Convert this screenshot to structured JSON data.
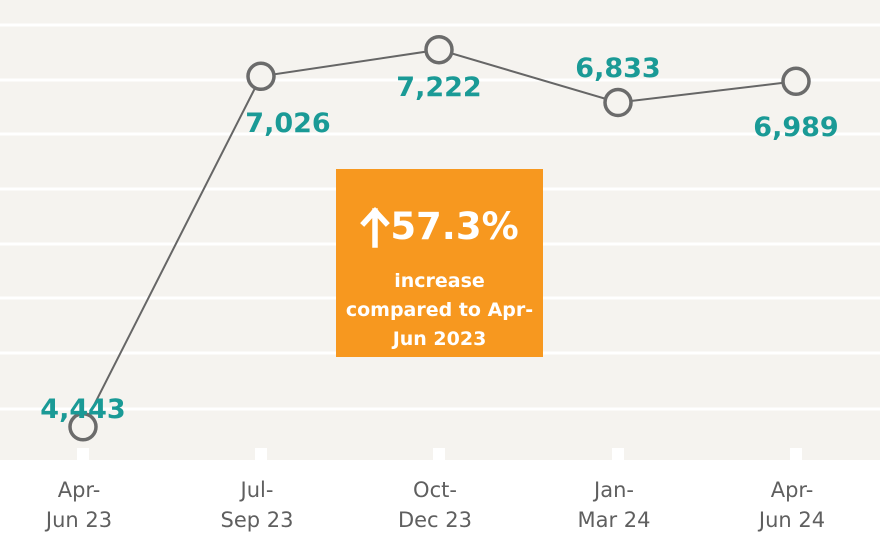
{
  "chart_data": {
    "type": "line",
    "categories": [
      "Apr-\nJun 23",
      "Jul-\nSep 23",
      "Oct-\nDec 23",
      "Jan-\nMar 24",
      "Apr-\nJun 24"
    ],
    "values": [
      4443,
      7026,
      7222,
      6833,
      6989
    ],
    "value_labels": [
      "4,443",
      "7,026",
      "7,222",
      "6,833",
      "6,989"
    ],
    "title": "",
    "xlabel": "",
    "ylabel": "",
    "grid": true,
    "colors": {
      "plot_background": "#f5f3ef",
      "gridline": "#ffffff",
      "line": "#666666",
      "marker_stroke": "#6b6b6b",
      "value_label": "#1a9a96",
      "callout_background": "#f7981f"
    }
  },
  "callout": {
    "arrow_icon": "arrow-up-icon",
    "headline": "57.3%",
    "text": "increase compared to Apr-Jun 2023"
  }
}
